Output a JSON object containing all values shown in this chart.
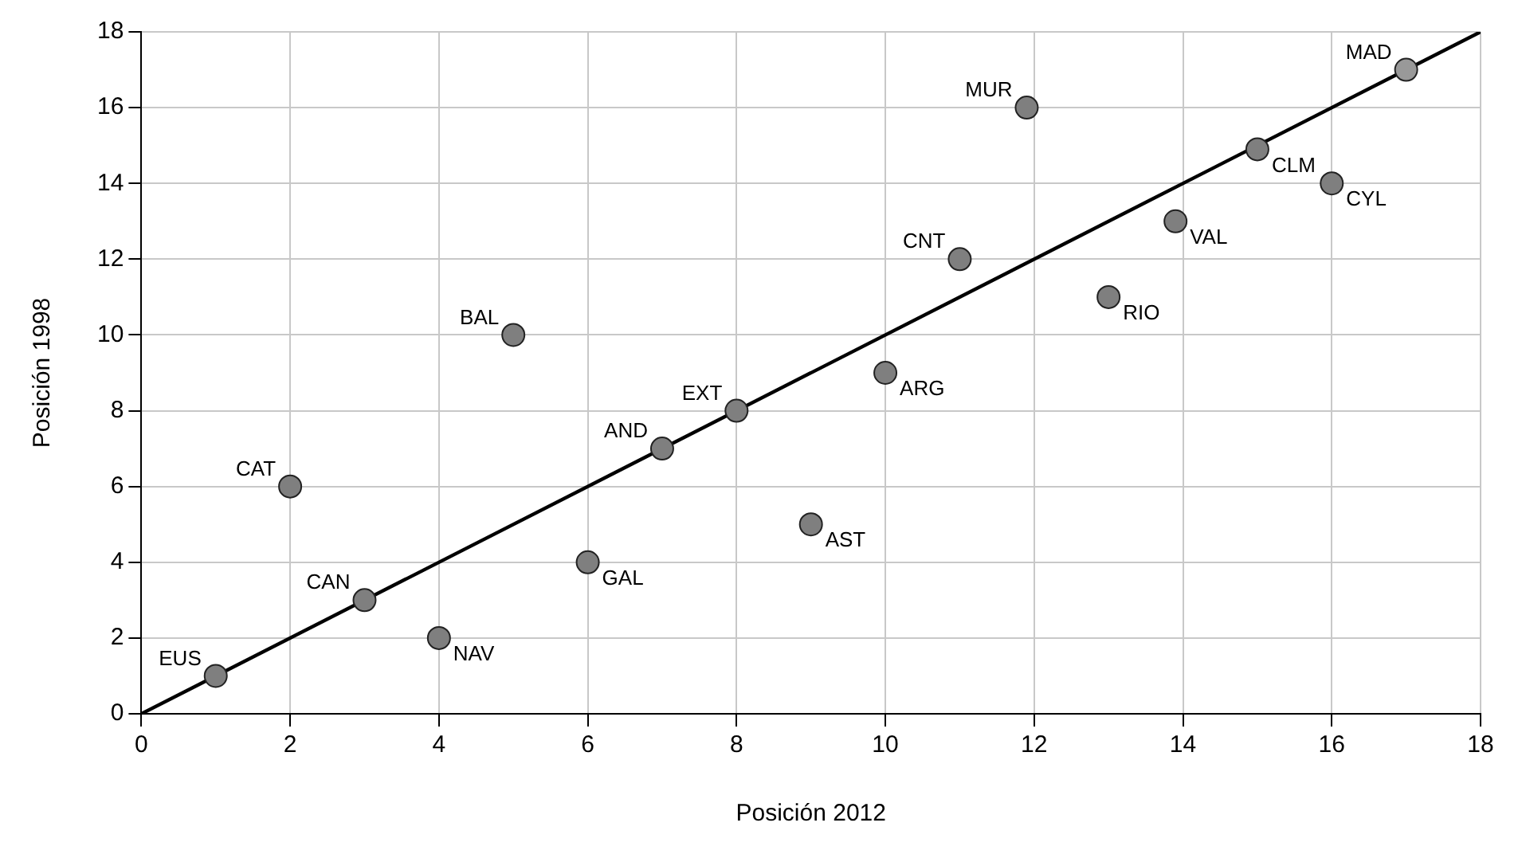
{
  "chart_data": {
    "type": "scatter",
    "xlabel": "Posición 2012",
    "ylabel": "Posición 1998",
    "xlim": [
      0,
      18
    ],
    "ylim": [
      0,
      18
    ],
    "xticks": [
      0,
      2,
      4,
      6,
      8,
      10,
      12,
      14,
      16,
      18
    ],
    "yticks": [
      0,
      2,
      4,
      6,
      8,
      10,
      12,
      14,
      16,
      18
    ],
    "grid": true,
    "legend": false,
    "series": [
      {
        "marker": "circle",
        "x": [
          1,
          2,
          3,
          4,
          5,
          6,
          7,
          8,
          9,
          10,
          11,
          11.9,
          13,
          13.9,
          15,
          16,
          17
        ],
        "values": [
          1,
          6,
          3,
          2,
          10,
          4,
          7,
          8,
          5,
          9,
          12,
          16,
          11,
          13,
          14.9,
          14,
          17
        ],
        "colors": [
          "#7f7f7f",
          "#7f7f7f",
          "#7f7f7f",
          "#7f7f7f",
          "#7f7f7f",
          "#7f7f7f",
          "#7f7f7f",
          "#7f7f7f",
          "#7f7f7f",
          "#7f7f7f",
          "#7f7f7f",
          "#7f7f7f",
          "#7f7f7f",
          "#7f7f7f",
          "#7f7f7f",
          "#7f7f7f",
          "#999999"
        ]
      },
      {
        "type": "line",
        "x": [
          0,
          18
        ],
        "values": [
          0,
          18
        ],
        "color": "#000000",
        "line_style": "solid",
        "marker": "none"
      }
    ],
    "annotations": [
      {
        "text": "EUS",
        "x": 1,
        "y": 1
      },
      {
        "text": "CAT",
        "x": 2,
        "y": 6
      },
      {
        "text": "CAN",
        "x": 3,
        "y": 3
      },
      {
        "text": "NAV",
        "x": 4,
        "y": 2
      },
      {
        "text": "BAL",
        "x": 5,
        "y": 10
      },
      {
        "text": "GAL",
        "x": 6,
        "y": 4
      },
      {
        "text": "AND",
        "x": 7,
        "y": 7
      },
      {
        "text": "EXT",
        "x": 8,
        "y": 8
      },
      {
        "text": "AST",
        "x": 9,
        "y": 5
      },
      {
        "text": "ARG",
        "x": 10,
        "y": 9
      },
      {
        "text": "CNT",
        "x": 11,
        "y": 12
      },
      {
        "text": "MUR",
        "x": 11.9,
        "y": 16
      },
      {
        "text": "RIO",
        "x": 13,
        "y": 11
      },
      {
        "text": "VAL",
        "x": 13.9,
        "y": 13
      },
      {
        "text": "CLM",
        "x": 15,
        "y": 14.9
      },
      {
        "text": "CYL",
        "x": 16,
        "y": 14
      },
      {
        "text": "MAD",
        "x": 17,
        "y": 17
      }
    ]
  }
}
